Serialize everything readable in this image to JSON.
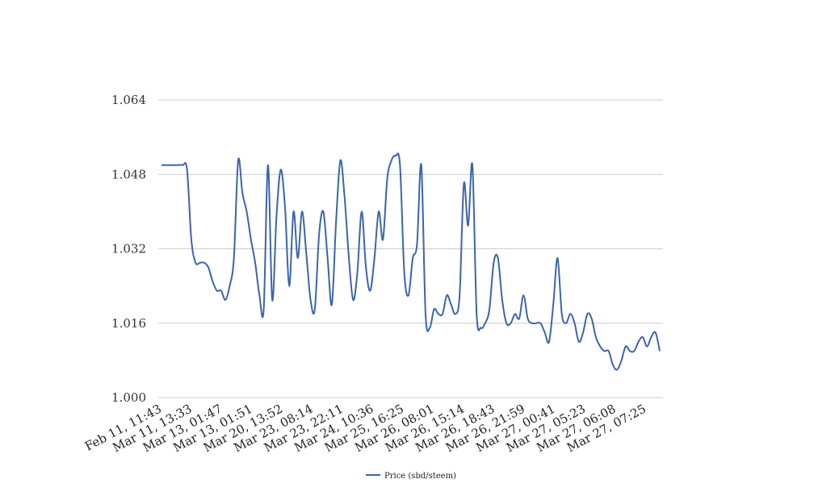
{
  "chart_data": {
    "type": "line",
    "ylim": [
      1.0,
      1.064
    ],
    "yticks": [
      "1.000",
      "1.016",
      "1.032",
      "1.048",
      "1.064"
    ],
    "grid": true,
    "legend_position": "bottom-center",
    "xtick_labels": [
      "Feb 11, 11:43",
      "Mar 11, 13:33",
      "Mar 13, 01:47",
      "Mar 13, 01:51",
      "Mar 20, 13:52",
      "Mar 23, 08:14",
      "Mar 23, 22:11",
      "Mar 24, 10:36",
      "Mar 25, 16:25",
      "Mar 26, 08:01",
      "Mar 26, 15:14",
      "Mar 26, 18:43",
      "Mar 26, 21:59",
      "Mar 27, 00:41",
      "Mar 27, 05:23",
      "Mar 27, 06:08",
      "Mar 27, 07:25"
    ],
    "series": [
      {
        "name": "Price (sbd/steem)",
        "color": "#3b64b0",
        "values": [
          1.05,
          1.05,
          1.05,
          1.05,
          1.05,
          1.05,
          1.049,
          1.034,
          1.029,
          1.029,
          1.029,
          1.028,
          1.025,
          1.023,
          1.023,
          1.021,
          1.024,
          1.03,
          1.051,
          1.044,
          1.04,
          1.034,
          1.029,
          1.022,
          1.019,
          1.05,
          1.021,
          1.039,
          1.049,
          1.041,
          1.024,
          1.04,
          1.03,
          1.04,
          1.031,
          1.021,
          1.019,
          1.035,
          1.04,
          1.03,
          1.02,
          1.038,
          1.051,
          1.043,
          1.03,
          1.021,
          1.027,
          1.04,
          1.028,
          1.023,
          1.03,
          1.04,
          1.034,
          1.047,
          1.051,
          1.052,
          1.05,
          1.027,
          1.022,
          1.03,
          1.033,
          1.05,
          1.018,
          1.015,
          1.019,
          1.018,
          1.018,
          1.022,
          1.02,
          1.018,
          1.022,
          1.046,
          1.037,
          1.05,
          1.018,
          1.015,
          1.016,
          1.019,
          1.029,
          1.03,
          1.021,
          1.016,
          1.016,
          1.018,
          1.017,
          1.022,
          1.017,
          1.016,
          1.016,
          1.016,
          1.014,
          1.012,
          1.02,
          1.03,
          1.018,
          1.016,
          1.018,
          1.016,
          1.012,
          1.014,
          1.018,
          1.017,
          1.013,
          1.011,
          1.01,
          1.01,
          1.007,
          1.006,
          1.008,
          1.011,
          1.01,
          1.01,
          1.012,
          1.013,
          1.011,
          1.013,
          1.014,
          1.01
        ]
      }
    ]
  }
}
